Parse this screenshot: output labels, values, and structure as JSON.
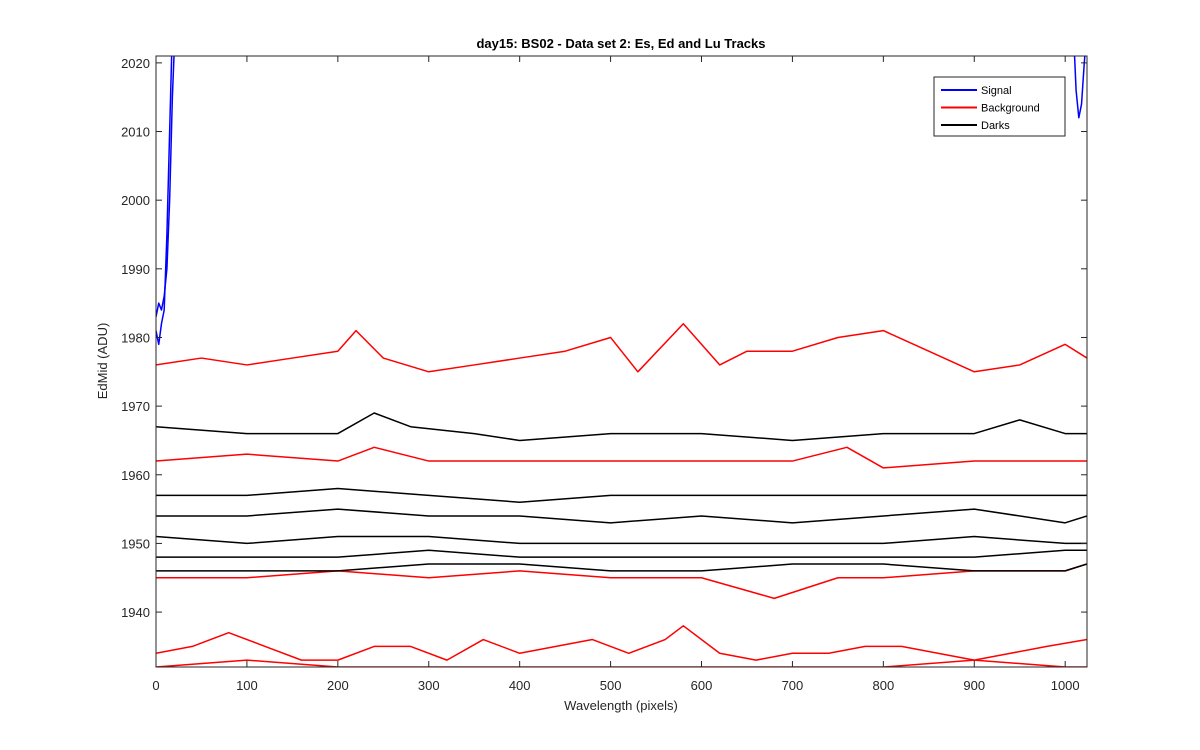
{
  "chart_data": {
    "type": "line",
    "title": "day15: BS02 - Data set 2: Es, Ed and Lu Tracks",
    "xlabel": "Wavelength (pixels)",
    "ylabel": "EdMid (ADU)",
    "xlim": [
      0,
      1024
    ],
    "ylim": [
      1932,
      2021
    ],
    "xticks": [
      0,
      100,
      200,
      300,
      400,
      500,
      600,
      700,
      800,
      900,
      1000
    ],
    "yticks": [
      1940,
      1950,
      1960,
      1970,
      1980,
      1990,
      2000,
      2010,
      2020
    ],
    "grid": false,
    "legend_position": "top-right",
    "legend": [
      {
        "label": "Signal",
        "color": "#0000ff"
      },
      {
        "label": "Background",
        "color": "#ff0000"
      },
      {
        "label": "Darks",
        "color": "#000000"
      }
    ],
    "series": [
      {
        "group": "Signal",
        "color": "#0000ff",
        "x": [
          0,
          3,
          6,
          9,
          12,
          15,
          18,
          21
        ],
        "y": [
          1983,
          1985,
          1984,
          1986,
          1990,
          2000,
          2015,
          2025
        ]
      },
      {
        "group": "Signal",
        "color": "#0000ff",
        "x": [
          0,
          3,
          6,
          9,
          12,
          15,
          18
        ],
        "y": [
          1981,
          1979,
          1982,
          1984,
          1995,
          2010,
          2025
        ]
      },
      {
        "group": "Signal",
        "color": "#0000ff",
        "x": [
          1009,
          1012,
          1015,
          1018,
          1021,
          1024
        ],
        "y": [
          2025,
          2016,
          2012,
          2014,
          2020,
          2025
        ]
      },
      {
        "group": "Background",
        "color": "#ff0000",
        "x": [
          0,
          50,
          100,
          150,
          200,
          220,
          250,
          300,
          350,
          400,
          450,
          500,
          530,
          580,
          620,
          650,
          700,
          750,
          800,
          850,
          900,
          950,
          1000,
          1024
        ],
        "y": [
          1976,
          1977,
          1976,
          1977,
          1978,
          1981,
          1977,
          1975,
          1976,
          1977,
          1978,
          1980,
          1975,
          1982,
          1976,
          1978,
          1978,
          1980,
          1981,
          1978,
          1975,
          1976,
          1979,
          1977
        ]
      },
      {
        "group": "Background",
        "color": "#ff0000",
        "x": [
          0,
          100,
          200,
          240,
          300,
          400,
          500,
          600,
          700,
          760,
          800,
          900,
          1000,
          1024
        ],
        "y": [
          1962,
          1963,
          1962,
          1964,
          1962,
          1962,
          1962,
          1962,
          1962,
          1964,
          1961,
          1962,
          1962,
          1962
        ]
      },
      {
        "group": "Background",
        "color": "#ff0000",
        "x": [
          0,
          100,
          200,
          300,
          400,
          500,
          600,
          680,
          750,
          800,
          900,
          1000,
          1024
        ],
        "y": [
          1945,
          1945,
          1946,
          1945,
          1946,
          1945,
          1945,
          1942,
          1945,
          1945,
          1946,
          1946,
          1947
        ]
      },
      {
        "group": "Background",
        "color": "#ff0000",
        "x": [
          0,
          40,
          80,
          120,
          160,
          200,
          240,
          280,
          320,
          360,
          400,
          440,
          480,
          520,
          560,
          580,
          620,
          660,
          700,
          740,
          780,
          820,
          860,
          900,
          940,
          980,
          1024
        ],
        "y": [
          1934,
          1935,
          1937,
          1935,
          1933,
          1933,
          1935,
          1935,
          1933,
          1936,
          1934,
          1935,
          1936,
          1934,
          1936,
          1938,
          1934,
          1933,
          1934,
          1934,
          1935,
          1935,
          1934,
          1933,
          1934,
          1935,
          1936
        ]
      },
      {
        "group": "Background",
        "color": "#ff0000",
        "x": [
          0,
          100,
          200,
          300,
          400,
          500,
          600,
          700,
          800,
          900,
          1000,
          1024
        ],
        "y": [
          1932,
          1933,
          1932,
          1932,
          1932,
          1932,
          1932,
          1932,
          1932,
          1933,
          1932,
          1932
        ]
      },
      {
        "group": "Darks",
        "color": "#000000",
        "x": [
          0,
          100,
          200,
          240,
          280,
          350,
          400,
          500,
          600,
          700,
          800,
          900,
          950,
          1000,
          1024
        ],
        "y": [
          1967,
          1966,
          1966,
          1969,
          1967,
          1966,
          1965,
          1966,
          1966,
          1965,
          1966,
          1966,
          1968,
          1966,
          1966
        ]
      },
      {
        "group": "Darks",
        "color": "#000000",
        "x": [
          0,
          100,
          200,
          300,
          400,
          500,
          600,
          700,
          800,
          900,
          1000,
          1024
        ],
        "y": [
          1957,
          1957,
          1958,
          1957,
          1956,
          1957,
          1957,
          1957,
          1957,
          1957,
          1957,
          1957
        ]
      },
      {
        "group": "Darks",
        "color": "#000000",
        "x": [
          0,
          100,
          200,
          300,
          400,
          500,
          600,
          700,
          800,
          900,
          1000,
          1024
        ],
        "y": [
          1954,
          1954,
          1955,
          1954,
          1954,
          1953,
          1954,
          1953,
          1954,
          1955,
          1953,
          1954
        ]
      },
      {
        "group": "Darks",
        "color": "#000000",
        "x": [
          0,
          100,
          200,
          300,
          400,
          500,
          600,
          700,
          800,
          900,
          1000,
          1024
        ],
        "y": [
          1951,
          1950,
          1951,
          1951,
          1950,
          1950,
          1950,
          1950,
          1950,
          1951,
          1950,
          1950
        ]
      },
      {
        "group": "Darks",
        "color": "#000000",
        "x": [
          0,
          100,
          200,
          300,
          400,
          500,
          600,
          700,
          800,
          900,
          1000,
          1024
        ],
        "y": [
          1948,
          1948,
          1948,
          1949,
          1948,
          1948,
          1948,
          1948,
          1948,
          1948,
          1949,
          1949
        ]
      },
      {
        "group": "Darks",
        "color": "#000000",
        "x": [
          0,
          100,
          200,
          300,
          400,
          500,
          600,
          700,
          800,
          900,
          1000,
          1024
        ],
        "y": [
          1946,
          1946,
          1946,
          1947,
          1947,
          1946,
          1946,
          1947,
          1947,
          1946,
          1946,
          1947
        ]
      }
    ]
  }
}
